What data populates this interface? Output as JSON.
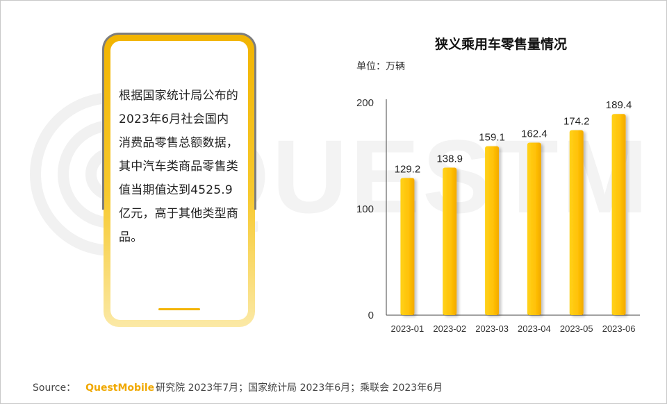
{
  "callout": {
    "text": "根据国家统计局公布的2023年6月社会国内消费品零售总额数据，其中汽车类商品零售类值当期值达到4525.9亿元，高于其他类型商品。"
  },
  "watermark_text": "QUESTMOBILE",
  "chart_data": {
    "type": "bar",
    "title": "狭义乘用车零售量情况",
    "unit": "单位：万辆",
    "categories": [
      "2023-01",
      "2023-02",
      "2023-03",
      "2023-04",
      "2023-05",
      "2023-06"
    ],
    "values": [
      129.2,
      138.9,
      159.1,
      162.4,
      174.2,
      189.4
    ],
    "value_labels": [
      "129.2",
      "138.9",
      "159.1",
      "162.4",
      "174.2",
      "189.4"
    ],
    "y_ticks": [
      "0",
      "100",
      "200"
    ],
    "ylim": [
      0,
      200
    ],
    "grid": false,
    "bar_color": "#f7b500",
    "bar_color_light": "#ffd21a"
  },
  "footer": {
    "source_label": "Source：",
    "brand": "QuestMobile",
    "rest": "研究院 2023年7月；国家统计局 2023年6月；乘联会 2023年6月"
  }
}
